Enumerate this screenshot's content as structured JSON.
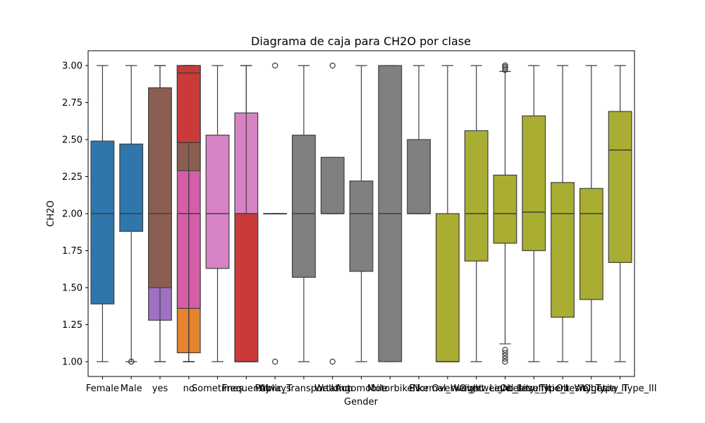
{
  "chart_data": {
    "type": "box",
    "title": "Diagrama de caja para CH2O por clase",
    "xlabel": "Gender",
    "ylabel": "CH2O",
    "ylim": [
      0.9,
      3.1
    ],
    "yticks": [
      1.0,
      1.25,
      1.5,
      1.75,
      2.0,
      2.25,
      2.5,
      2.75,
      3.0
    ],
    "ytick_labels": [
      "1.00",
      "1.25",
      "1.50",
      "1.75",
      "2.00",
      "2.25",
      "2.50",
      "2.75",
      "3.00"
    ],
    "categories": [
      "Female",
      "Male",
      "yes",
      "no",
      "Sometimes",
      "Frequently",
      "Always",
      "Public_Transportation",
      "Walking",
      "Automobile",
      "Motorbike",
      "Bike",
      "Normal_Weight",
      "Overweight_Level_I",
      "Overweight_Level_II",
      "Obesity_Type_I",
      "Insufficient_Weight",
      "Obesity_Type_II",
      "Obesity_Type_III"
    ],
    "boxes": [
      {
        "category": "Female",
        "pos": 0,
        "q1": 1.39,
        "median": 2.0,
        "q3": 2.49,
        "whislo": 1.0,
        "whishi": 3.0,
        "color": "#2f76ad",
        "fliers": []
      },
      {
        "category": "Male",
        "pos": 1,
        "q1": 1.88,
        "median": 2.0,
        "q3": 2.47,
        "whislo": 1.0,
        "whishi": 3.0,
        "color": "#2f76ad",
        "fliers": [
          1.0,
          1.0
        ]
      },
      {
        "category": "yes",
        "pos": 2,
        "q1": 1.28,
        "median": 2.0,
        "q3": 2.5,
        "whislo": 1.0,
        "whishi": 3.0,
        "color": "#9e71c2",
        "fliers": []
      },
      {
        "category": "yes",
        "pos": 2,
        "q1": 1.5,
        "median": 2.0,
        "q3": 2.85,
        "whislo": 1.0,
        "whishi": 3.0,
        "color": "#8c5e52",
        "fliers": []
      },
      {
        "category": "no",
        "pos": 3,
        "q1": 1.06,
        "median": 2.0,
        "q3": 2.0,
        "whislo": 1.0,
        "whishi": 3.0,
        "color": "#e5832e",
        "fliers": []
      },
      {
        "category": "no",
        "pos": 3,
        "q1": 1.36,
        "median": 2.0,
        "q3": 3.0,
        "whislo": 1.0,
        "whishi": 3.0,
        "color": "#d55ea8",
        "fliers": []
      },
      {
        "category": "no",
        "pos": 3,
        "q1": 2.29,
        "median": 2.48,
        "q3": 3.0,
        "whislo": 1.0,
        "whishi": 3.0,
        "color": "#8c5e52",
        "fliers": []
      },
      {
        "category": "no",
        "pos": 3,
        "q1": 2.48,
        "median": 2.95,
        "q3": 3.0,
        "whislo": 1.0,
        "whishi": 3.0,
        "color": "#c93a38",
        "fliers": []
      },
      {
        "category": "Sometimes",
        "pos": 4,
        "q1": 1.63,
        "median": 2.0,
        "q3": 2.53,
        "whislo": 1.0,
        "whishi": 3.0,
        "color": "#d782c5",
        "fliers": []
      },
      {
        "category": "Frequently",
        "pos": 5,
        "q1": 1.0,
        "median": 2.0,
        "q3": 2.68,
        "whislo": 1.0,
        "whishi": 3.0,
        "color": "#d782c5",
        "fliers": []
      },
      {
        "category": "Frequently",
        "pos": 5,
        "q1": 1.0,
        "median": 1.0,
        "q3": 2.0,
        "whislo": 1.0,
        "whishi": 3.0,
        "color": "#c93a38",
        "fliers": []
      },
      {
        "category": "Always",
        "pos": 6,
        "q1": 2.0,
        "median": 2.0,
        "q3": 2.0,
        "whislo": 2.0,
        "whishi": 2.0,
        "color": "#808080",
        "fliers": [
          1.0,
          3.0
        ]
      },
      {
        "category": "Public_Transportation",
        "pos": 7,
        "q1": 1.57,
        "median": 2.0,
        "q3": 2.53,
        "whislo": 1.0,
        "whishi": 3.0,
        "color": "#808080",
        "fliers": []
      },
      {
        "category": "Walking",
        "pos": 8,
        "q1": 2.0,
        "median": 2.0,
        "q3": 2.38,
        "whislo": 2.0,
        "whishi": 2.38,
        "color": "#808080",
        "fliers": [
          1.0,
          3.0
        ]
      },
      {
        "category": "Automobile",
        "pos": 9,
        "q1": 1.61,
        "median": 2.0,
        "q3": 2.22,
        "whislo": 1.0,
        "whishi": 3.0,
        "color": "#808080",
        "fliers": []
      },
      {
        "category": "Motorbike",
        "pos": 10,
        "q1": 1.0,
        "median": 2.0,
        "q3": 3.0,
        "whislo": 1.0,
        "whishi": 3.0,
        "color": "#808080",
        "fliers": []
      },
      {
        "category": "Bike",
        "pos": 11,
        "q1": 2.0,
        "median": 2.0,
        "q3": 2.5,
        "whislo": 2.0,
        "whishi": 3.0,
        "color": "#808080",
        "fliers": []
      },
      {
        "category": "Normal_Weight",
        "pos": 12,
        "q1": 1.0,
        "median": 1.0,
        "q3": 2.0,
        "whislo": 1.0,
        "whishi": 3.0,
        "color": "#a9ad32",
        "fliers": []
      },
      {
        "category": "Overweight_Level_I",
        "pos": 13,
        "q1": 1.68,
        "median": 2.0,
        "q3": 2.56,
        "whislo": 1.0,
        "whishi": 3.0,
        "color": "#a9ad32",
        "fliers": []
      },
      {
        "category": "Overweight_Level_II",
        "pos": 14,
        "q1": 1.8,
        "median": 2.0,
        "q3": 2.26,
        "whislo": 1.12,
        "whishi": 2.96,
        "color": "#a9ad32",
        "fliers": [
          1.0,
          1.02,
          1.04,
          1.06,
          1.08,
          2.97,
          2.98,
          2.99,
          3.0,
          3.0
        ]
      },
      {
        "category": "Obesity_Type_I",
        "pos": 15,
        "q1": 1.75,
        "median": 2.01,
        "q3": 2.66,
        "whislo": 1.0,
        "whishi": 3.0,
        "color": "#a9ad32",
        "fliers": []
      },
      {
        "category": "Insufficient_Weight",
        "pos": 16,
        "q1": 1.3,
        "median": 2.0,
        "q3": 2.21,
        "whislo": 1.0,
        "whishi": 3.0,
        "color": "#a9ad32",
        "fliers": []
      },
      {
        "category": "Obesity_Type_II",
        "pos": 17,
        "q1": 1.42,
        "median": 2.0,
        "q3": 2.17,
        "whislo": 1.0,
        "whishi": 3.0,
        "color": "#a9ad32",
        "fliers": []
      },
      {
        "category": "Obesity_Type_III",
        "pos": 18,
        "q1": 1.67,
        "median": 2.43,
        "q3": 2.69,
        "whislo": 1.0,
        "whishi": 3.0,
        "color": "#a9ad32",
        "fliers": []
      }
    ],
    "grid": false,
    "legend": "none"
  }
}
